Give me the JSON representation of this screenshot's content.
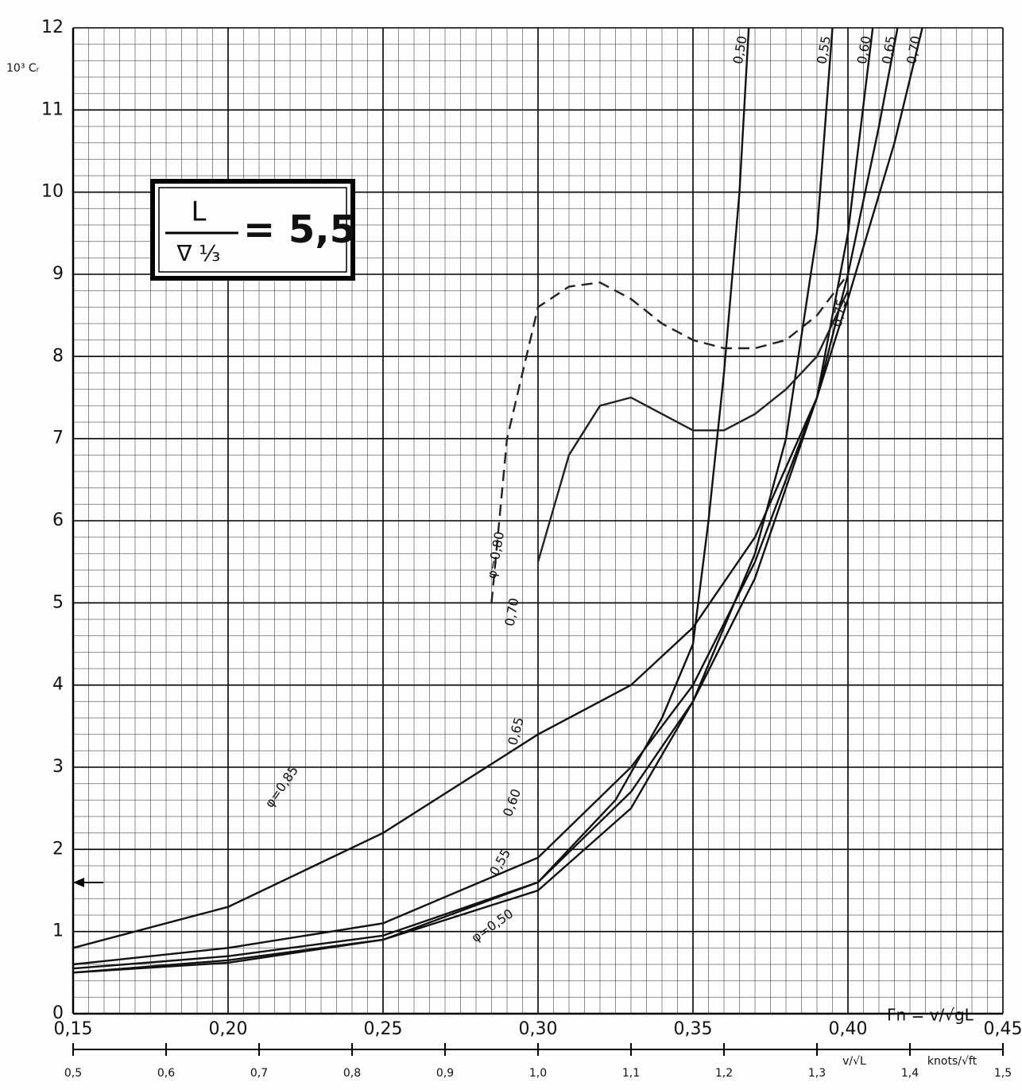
{
  "chart_data": {
    "type": "line",
    "ylabel": "10³ Cᵣ",
    "xlabel": "Fn = v/√gL",
    "x2label": "v/√L",
    "x2unit": "knots/√ft",
    "box": {
      "numerator": "L",
      "denominator": "∇ ⅓",
      "value": "= 5,5"
    },
    "xlim": [
      0.15,
      0.45
    ],
    "xticks": [
      {
        "value": 0.15,
        "label": "0,15"
      },
      {
        "value": 0.2,
        "label": "0,20"
      },
      {
        "value": 0.25,
        "label": "0,25"
      },
      {
        "value": 0.3,
        "label": "0,30"
      },
      {
        "value": 0.35,
        "label": "0,35"
      },
      {
        "value": 0.4,
        "label": "0,40"
      },
      {
        "value": 0.45,
        "label": "0,45"
      }
    ],
    "x2lim": [
      0.5,
      1.5
    ],
    "x2ticks": [
      {
        "value": 0.5,
        "label": "0,5"
      },
      {
        "value": 0.6,
        "label": "0,6"
      },
      {
        "value": 0.7,
        "label": "0,7"
      },
      {
        "value": 0.8,
        "label": "0,8"
      },
      {
        "value": 0.9,
        "label": "0,9"
      },
      {
        "value": 1.0,
        "label": "1,0"
      },
      {
        "value": 1.1,
        "label": "1,1"
      },
      {
        "value": 1.2,
        "label": "1,2"
      },
      {
        "value": 1.3,
        "label": "1,3"
      },
      {
        "value": 1.4,
        "label": "1,4"
      },
      {
        "value": 1.5,
        "label": "1,5"
      }
    ],
    "ylim": [
      0,
      12
    ],
    "yticks": [
      0,
      1,
      2,
      3,
      4,
      5,
      6,
      7,
      8,
      9,
      10,
      11,
      12
    ],
    "grid": true,
    "annotations": [
      "φ=0,50",
      "0,55",
      "0,60",
      "0,65",
      "0,70",
      "φ=0,85"
    ],
    "series": [
      {
        "name": "0,50",
        "color": "#111111",
        "dashed": false,
        "x": [
          0.15,
          0.2,
          0.25,
          0.3,
          0.325,
          0.34,
          0.35,
          0.355,
          0.36,
          0.365,
          0.368
        ],
        "values": [
          0.5,
          0.65,
          0.9,
          1.6,
          2.6,
          3.6,
          4.5,
          6,
          7.8,
          10,
          12
        ]
      },
      {
        "name": "0,55",
        "color": "#111111",
        "dashed": false,
        "x": [
          0.15,
          0.2,
          0.25,
          0.3,
          0.33,
          0.35,
          0.37,
          0.38,
          0.39,
          0.395
        ],
        "values": [
          0.5,
          0.62,
          0.9,
          1.5,
          2.5,
          3.8,
          5.6,
          7.0,
          9.5,
          12
        ]
      },
      {
        "name": "0,60",
        "color": "#111111",
        "dashed": false,
        "x": [
          0.15,
          0.2,
          0.25,
          0.3,
          0.33,
          0.35,
          0.37,
          0.39,
          0.4,
          0.408
        ],
        "values": [
          0.55,
          0.7,
          0.95,
          1.6,
          2.7,
          3.8,
          5.3,
          7.5,
          9.5,
          12
        ]
      },
      {
        "name": "0,65",
        "color": "#111111",
        "dashed": false,
        "x": [
          0.15,
          0.2,
          0.25,
          0.3,
          0.33,
          0.35,
          0.37,
          0.39,
          0.4,
          0.41,
          0.416
        ],
        "values": [
          0.6,
          0.8,
          1.1,
          1.9,
          3.0,
          4.0,
          5.5,
          7.5,
          9.0,
          10.8,
          12
        ]
      },
      {
        "name": "0,70",
        "color": "#111111",
        "dashed": false,
        "x": [
          0.15,
          0.2,
          0.25,
          0.3,
          0.33,
          0.35,
          0.37,
          0.39,
          0.4,
          0.415,
          0.424
        ],
        "values": [
          0.8,
          1.3,
          2.2,
          3.4,
          4.0,
          4.7,
          5.8,
          7.5,
          8.7,
          10.6,
          12
        ]
      },
      {
        "name": "0,75",
        "color": "#222222",
        "dashed": false,
        "x": [
          0.3,
          0.31,
          0.32,
          0.33,
          0.34,
          0.35,
          0.36,
          0.37,
          0.38,
          0.39,
          0.4
        ],
        "values": [
          5.5,
          6.8,
          7.4,
          7.5,
          7.3,
          7.1,
          7.1,
          7.3,
          7.6,
          8.0,
          8.8
        ]
      },
      {
        "name": "φ=0,80",
        "color": "#222222",
        "dashed": true,
        "x": [
          0.285,
          0.29,
          0.3,
          0.31,
          0.32,
          0.33,
          0.34,
          0.35,
          0.36,
          0.37,
          0.38,
          0.39,
          0.4
        ],
        "values": [
          5,
          7,
          8.6,
          8.85,
          8.9,
          8.7,
          8.4,
          8.2,
          8.1,
          8.1,
          8.2,
          8.5,
          9.0
        ]
      }
    ]
  }
}
